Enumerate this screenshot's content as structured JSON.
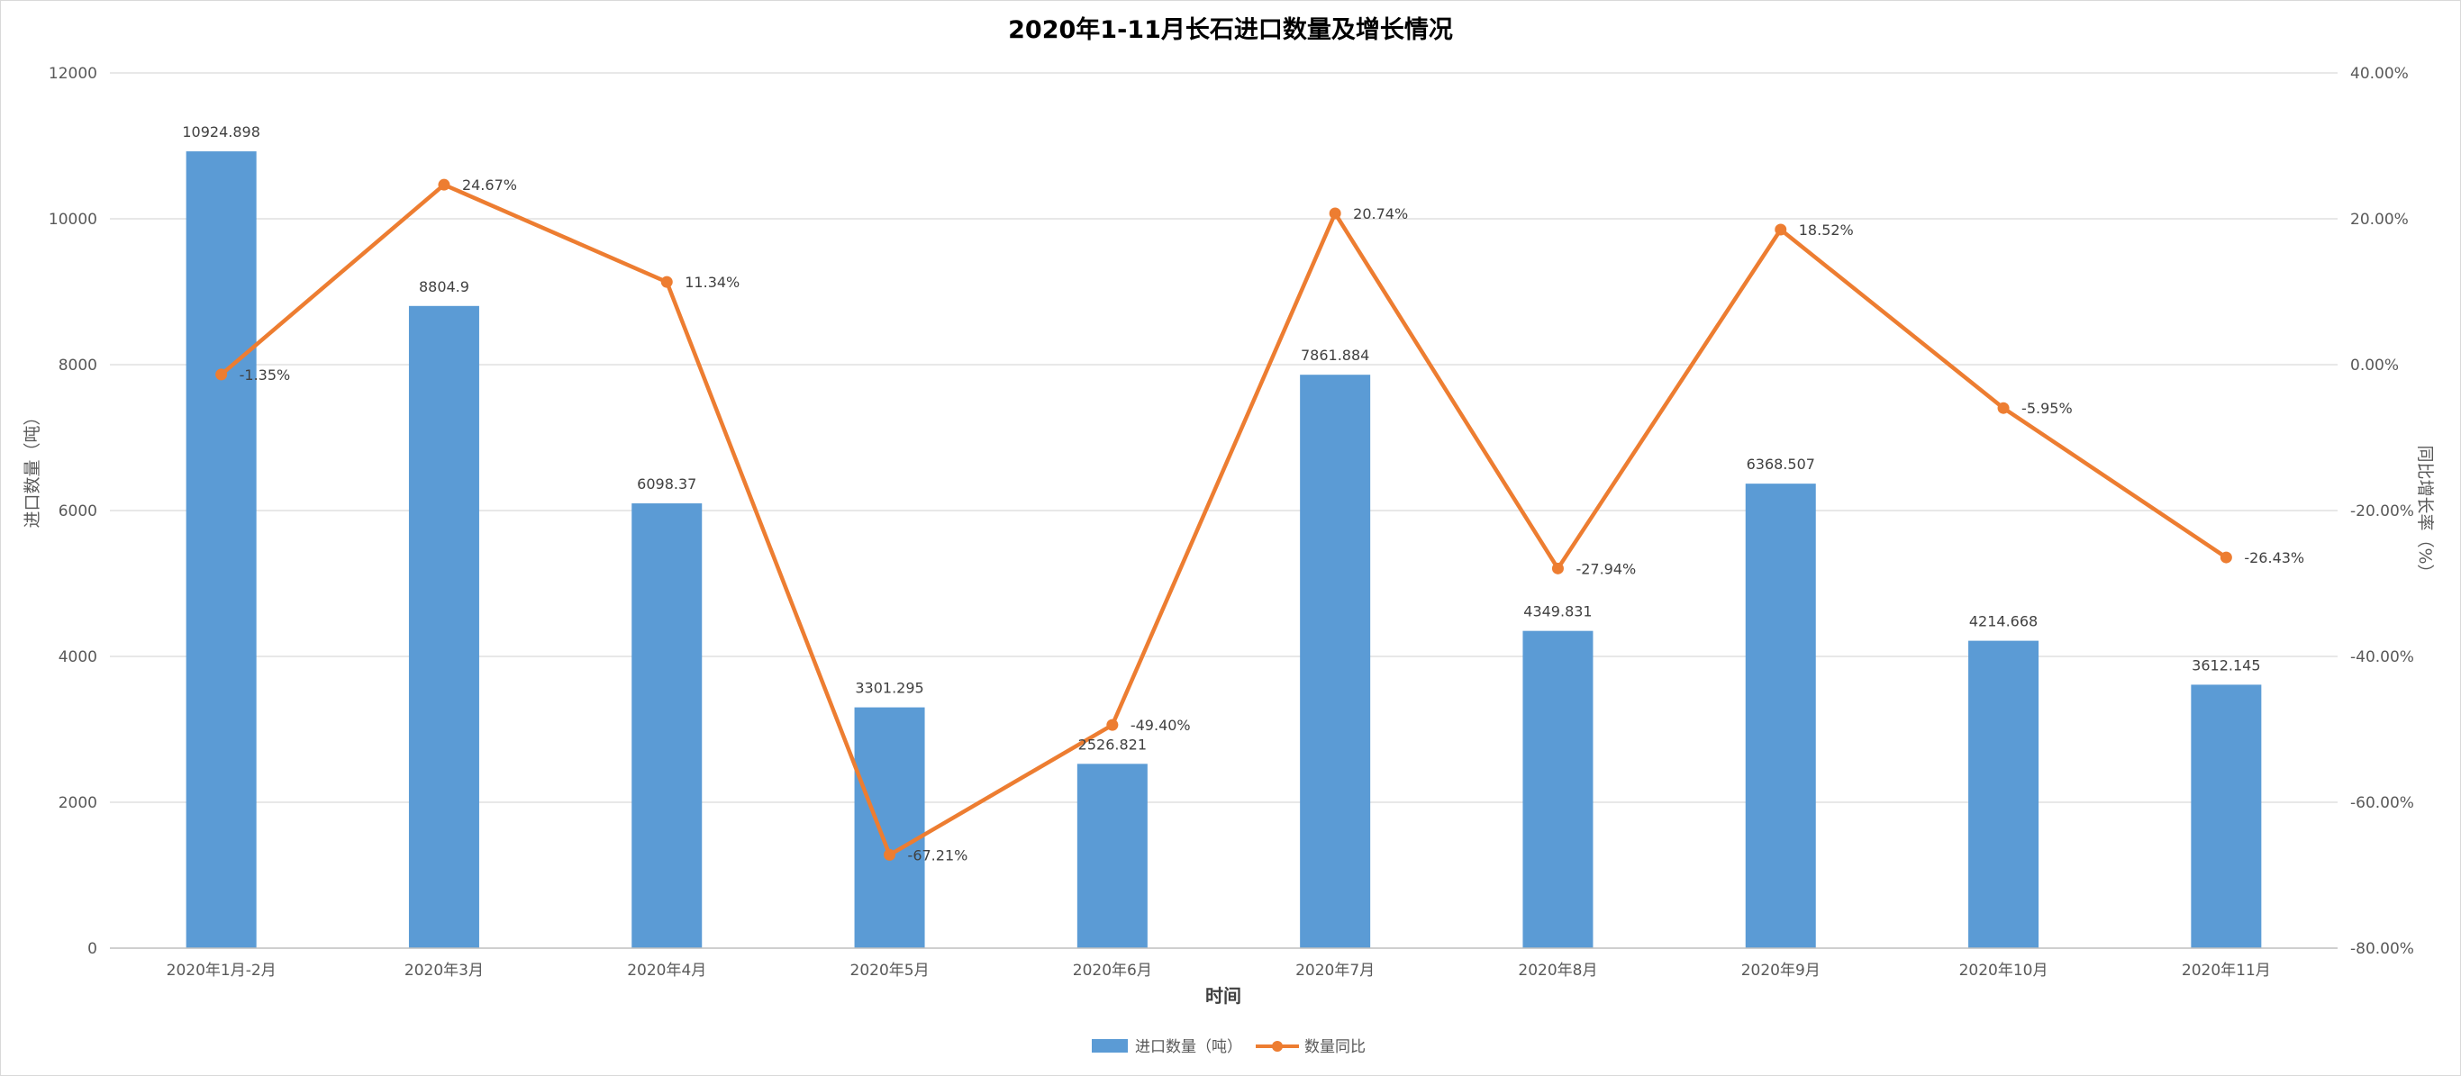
{
  "chart_data": {
    "type": "bar",
    "title": "2020年1-11月长石进口数量及增长情况",
    "xlabel": "时间",
    "ylabel": "进口数量（吨）",
    "y2label": "同比增长率（%）",
    "categories": [
      "2020年1月-2月",
      "2020年3月",
      "2020年4月",
      "2020年5月",
      "2020年6月",
      "2020年7月",
      "2020年8月",
      "2020年9月",
      "2020年10月",
      "2020年11月"
    ],
    "series": [
      {
        "name": "进口数量（吨）",
        "type": "bar",
        "axis": "left",
        "color": "#5b9bd5",
        "values": [
          10924.898,
          8804.9,
          6098.37,
          3301.295,
          2526.821,
          7861.884,
          4349.831,
          6368.507,
          4214.668,
          3612.145
        ],
        "labels": [
          "10924.898",
          "8804.9",
          "6098.37",
          "3301.295",
          "2526.821",
          "7861.884",
          "4349.831",
          "6368.507",
          "4214.668",
          "3612.145"
        ]
      },
      {
        "name": "数量同比",
        "type": "line",
        "axis": "right",
        "color": "#ed7d31",
        "values": [
          -1.35,
          24.67,
          11.34,
          -67.21,
          -49.4,
          20.74,
          -27.94,
          18.52,
          -5.95,
          -26.43
        ],
        "labels": [
          "-1.35%",
          "24.67%",
          "11.34%",
          "-67.21%",
          "-49.40%",
          "20.74%",
          "-27.94%",
          "18.52%",
          "-5.95%",
          "-26.43%"
        ]
      }
    ],
    "ylim": [
      0,
      12000
    ],
    "y_ticks": [
      "0",
      "2000",
      "4000",
      "6000",
      "8000",
      "10000",
      "12000"
    ],
    "y2lim": [
      -80,
      40
    ],
    "y2_ticks": [
      "-80.00%",
      "-60.00%",
      "-40.00%",
      "-20.00%",
      "0.00%",
      "20.00%",
      "40.00%"
    ],
    "grid": true,
    "legend_position": "bottom"
  }
}
